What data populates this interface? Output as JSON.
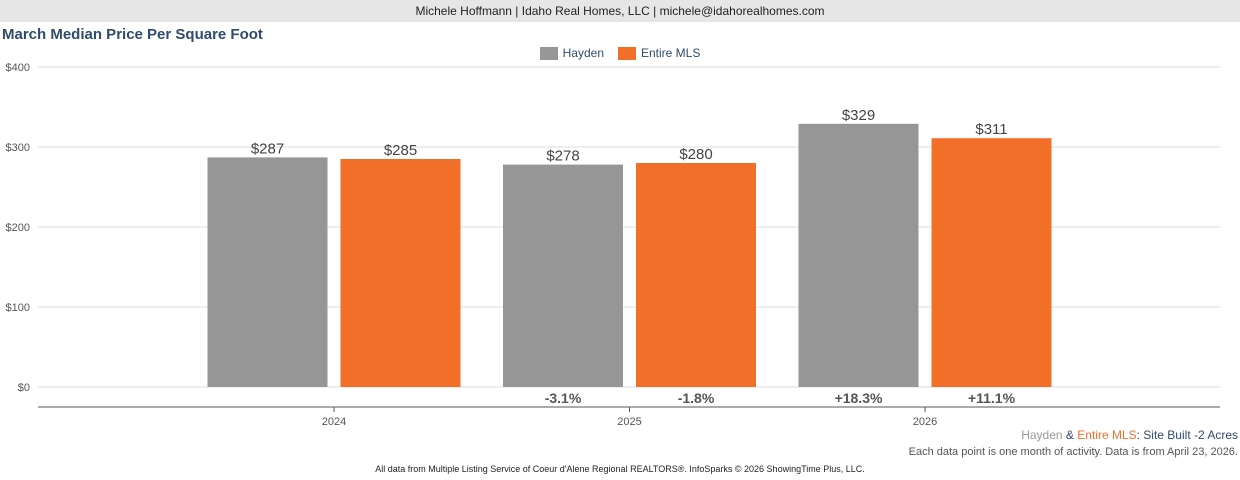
{
  "header": {
    "agent_line": "Michele Hoffmann | Idaho Real Homes, LLC | michele@idahorealhomes.com"
  },
  "colors": {
    "hayden": "#969696",
    "entire_mls": "#f26f2a",
    "title": "#2f4b6e"
  },
  "chart_data": {
    "type": "bar",
    "title": "March Median Price Per Square Foot",
    "categories": [
      "2024",
      "2025",
      "2026"
    ],
    "series": [
      {
        "name": "Hayden",
        "values": [
          287,
          278,
          329
        ],
        "value_labels": [
          "$287",
          "$278",
          "$329"
        ],
        "change_labels": [
          "",
          "-3.1%",
          "+18.3%"
        ]
      },
      {
        "name": "Entire MLS",
        "values": [
          285,
          280,
          311
        ],
        "value_labels": [
          "$285",
          "$280",
          "$311"
        ],
        "change_labels": [
          "",
          "-1.8%",
          "+11.1%"
        ]
      }
    ],
    "ylim": [
      0,
      400
    ],
    "yticks": [
      0,
      100,
      200,
      300,
      400
    ],
    "ytick_labels": [
      "$0",
      "$100",
      "$200",
      "$300",
      "$400"
    ],
    "xlabel": "",
    "ylabel": "",
    "grid": true,
    "legend_position": "top-center"
  },
  "footer": {
    "series_hayden": "Hayden",
    "ampersand": " & ",
    "series_mls": "Entire MLS",
    "segment": ": Site Built -2 Acres",
    "note": "Each data point is one month of activity. Data is from April 23, 2026.",
    "copyright": "All data from Multiple Listing Service of Coeur d'Alene Regional REALTORS®. InfoSparks © 2026 ShowingTime Plus, LLC."
  }
}
